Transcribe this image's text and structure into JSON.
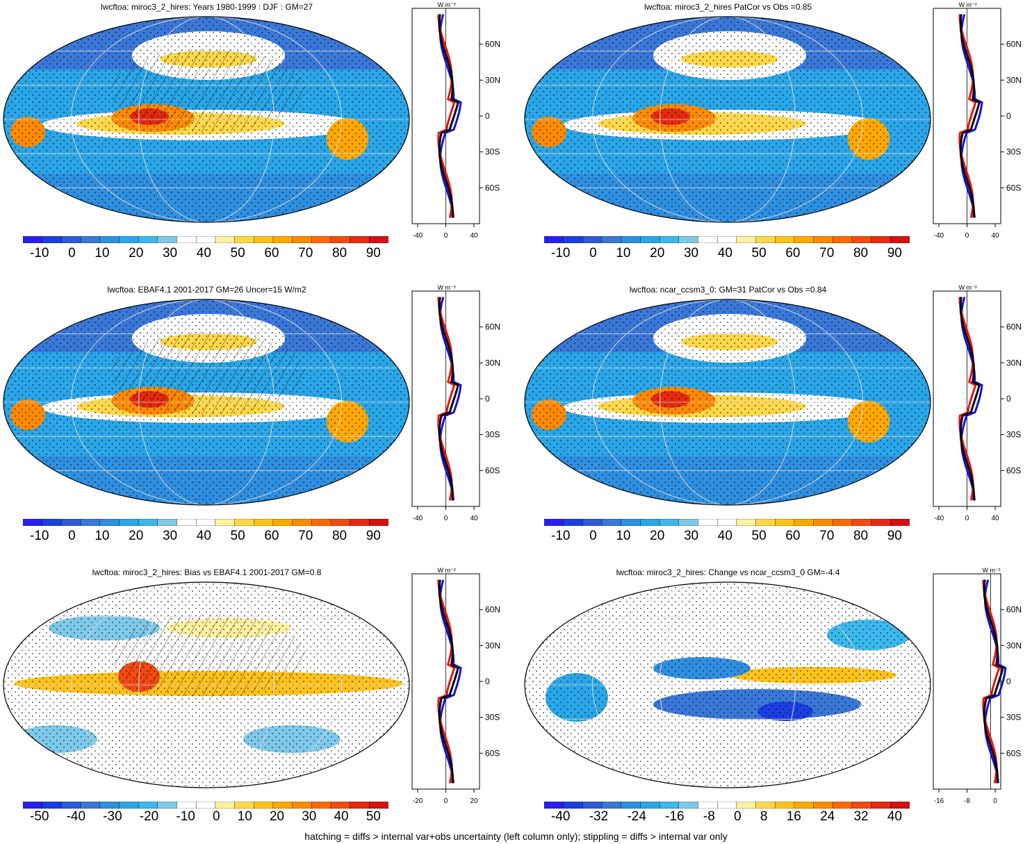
{
  "panels": [
    {
      "title": "lwcftoa: miroc3_2_hires: Years 1980-1999 : DJF : GM=27",
      "kind": "mean",
      "colorbar_labels": [
        "-10",
        "0",
        "10",
        "20",
        "30",
        "40",
        "50",
        "60",
        "70",
        "80",
        "90"
      ],
      "profile_x_ticks": [
        "-40",
        "0",
        "40"
      ],
      "profile_unit": "W m⁻²"
    },
    {
      "title": "lwcftoa: miroc3_2_hires PatCor vs Obs =0.85",
      "kind": "mean",
      "colorbar_labels": [
        "-10",
        "0",
        "10",
        "20",
        "30",
        "40",
        "50",
        "60",
        "70",
        "80",
        "90"
      ],
      "profile_x_ticks": [
        "-40",
        "0",
        "40"
      ],
      "profile_unit": "W m⁻²"
    },
    {
      "title": "lwcftoa: EBAF4.1 2001-2017 GM=26 Uncer=15 W/m2",
      "kind": "mean",
      "colorbar_labels": [
        "-10",
        "0",
        "10",
        "20",
        "30",
        "40",
        "50",
        "60",
        "70",
        "80",
        "90"
      ],
      "profile_x_ticks": [
        "-40",
        "0",
        "40"
      ],
      "profile_unit": "W m⁻²"
    },
    {
      "title": "lwcftoa: ncar_ccsm3_0: GM=31 PatCor vs Obs =0.84",
      "kind": "mean",
      "colorbar_labels": [
        "-10",
        "0",
        "10",
        "20",
        "30",
        "40",
        "50",
        "60",
        "70",
        "80",
        "90"
      ],
      "profile_x_ticks": [
        "-40",
        "0",
        "40"
      ],
      "profile_unit": "W m⁻²"
    },
    {
      "title": "lwcftoa: miroc3_2_hires: Bias vs EBAF4.1 2001-2017 GM=0.8",
      "kind": "bias",
      "colorbar_labels": [
        "-50",
        "-40",
        "-30",
        "-20",
        "-10",
        "0",
        "10",
        "20",
        "30",
        "40",
        "50"
      ],
      "profile_x_ticks": [
        "-20",
        "0",
        "20"
      ],
      "profile_unit": "W m⁻²"
    },
    {
      "title": "lwcftoa: miroc3_2_hires: Change vs ncar_ccsm3_0 GM=-4.4",
      "kind": "change",
      "colorbar_labels": [
        "-40",
        "-32",
        "-24",
        "-16",
        "-8",
        "0",
        "8",
        "16",
        "24",
        "32",
        "40"
      ],
      "profile_x_ticks": [
        "-16",
        "-8",
        "0"
      ],
      "profile_unit": "W m⁻²"
    }
  ],
  "lat_labels": [
    "60N",
    "30N",
    "0",
    "30S",
    "60S"
  ],
  "colors": {
    "seq": [
      "#2a1ff0",
      "#1a3fe0",
      "#2d5bd6",
      "#3a78d8",
      "#2f8fe0",
      "#2aa6e8",
      "#3bb8ec",
      "#7ec9ea",
      "#ffffff",
      "#ffffff",
      "#fff1a0",
      "#ffd84a",
      "#ffc21a",
      "#ffa800",
      "#ff8a00",
      "#ff6a00",
      "#f24a10",
      "#e52a10",
      "#d41010"
    ],
    "profile_blue": "#1010e0",
    "profile_red": "#ee1010",
    "profile_black": "#000000",
    "land_outline": "#000000"
  },
  "footer": "hatching = diffs > internal var+obs uncertainty (left column only); stippling = diffs > internal var only"
}
